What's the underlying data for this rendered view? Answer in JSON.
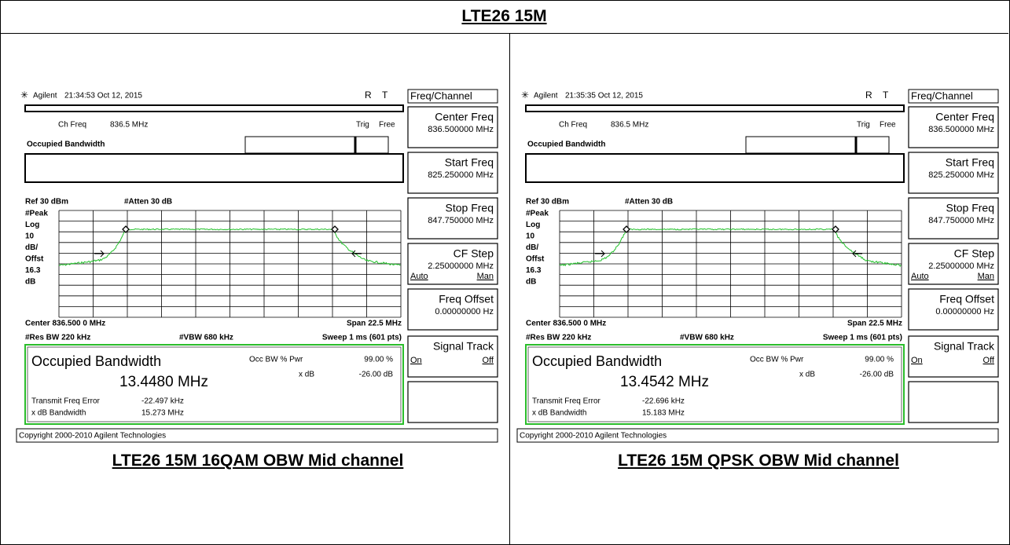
{
  "header": {
    "title": "LTE26 15M"
  },
  "panels": [
    {
      "caption": "LTE26 15M 16QAM OBW Mid channel",
      "screen": {
        "brand": "Agilent",
        "timestamp": "21:34:53  Oct 12, 2015",
        "status_r": "R",
        "status_t": "T",
        "menu_title": "Freq/Channel",
        "ch_freq_label": "Ch Freq",
        "ch_freq": "836.5 MHz",
        "trig": "Trig",
        "trig_mode": "Free",
        "mode": "Occupied Bandwidth",
        "ref": "Ref 30 dBm",
        "atten": "#Atten 30 dB",
        "scale_labels": [
          "#Peak",
          "Log",
          "10",
          "dB/",
          "Offst",
          "16.3",
          "dB"
        ],
        "center": "Center 836.500 0 MHz",
        "span": "Span 22.5 MHz",
        "res_bw": "#Res BW 220 kHz",
        "vbw": "#VBW 680 kHz",
        "sweep": "Sweep 1 ms (601 pts)",
        "result_title": "Occupied Bandwidth",
        "obw": "13.4480 MHz",
        "occ_label": "Occ BW % Pwr",
        "occ_value": "99.00 %",
        "xdb_label": "x dB",
        "xdb_value": "-26.00 dB",
        "tfe_label": "Transmit Freq Error",
        "tfe_value": "-22.497 kHz",
        "xbw_label": "x dB Bandwidth",
        "xbw_value": "15.273 MHz",
        "copyright": "Copyright 2000-2010 Agilent Technologies",
        "softkeys": [
          {
            "label": "Center Freq",
            "value": "836.500000 MHz"
          },
          {
            "label": "Start Freq",
            "value": "825.250000 MHz"
          },
          {
            "label": "Stop Freq",
            "value": "847.750000 MHz"
          },
          {
            "label": "CF Step",
            "value": "2.25000000 MHz",
            "left": "Auto",
            "right": "Man"
          },
          {
            "label": "Freq Offset",
            "value": "0.00000000  Hz"
          },
          {
            "label": "Signal Track",
            "left": "On",
            "right": "Off"
          }
        ]
      }
    },
    {
      "caption": "LTE26 15M QPSK OBW Mid channel",
      "screen": {
        "brand": "Agilent",
        "timestamp": "21:35:35  Oct 12, 2015",
        "status_r": "R",
        "status_t": "T",
        "menu_title": "Freq/Channel",
        "ch_freq_label": "Ch Freq",
        "ch_freq": "836.5 MHz",
        "trig": "Trig",
        "trig_mode": "Free",
        "mode": "Occupied Bandwidth",
        "ref": "Ref 30 dBm",
        "atten": "#Atten 30 dB",
        "scale_labels": [
          "#Peak",
          "Log",
          "10",
          "dB/",
          "Offst",
          "16.3",
          "dB"
        ],
        "center": "Center 836.500 0 MHz",
        "span": "Span 22.5 MHz",
        "res_bw": "#Res BW 220 kHz",
        "vbw": "#VBW 680 kHz",
        "sweep": "Sweep 1 ms (601 pts)",
        "result_title": "Occupied Bandwidth",
        "obw": "13.4542 MHz",
        "occ_label": "Occ BW % Pwr",
        "occ_value": "99.00 %",
        "xdb_label": "x dB",
        "xdb_value": "-26.00 dB",
        "tfe_label": "Transmit Freq Error",
        "tfe_value": "-22.696 kHz",
        "xbw_label": "x dB Bandwidth",
        "xbw_value": "15.183 MHz",
        "copyright": "Copyright 2000-2010 Agilent Technologies",
        "softkeys": [
          {
            "label": "Center Freq",
            "value": "836.500000 MHz"
          },
          {
            "label": "Start Freq",
            "value": "825.250000 MHz"
          },
          {
            "label": "Stop Freq",
            "value": "847.750000 MHz"
          },
          {
            "label": "CF Step",
            "value": "2.25000000 MHz",
            "left": "Auto",
            "right": "Man"
          },
          {
            "label": "Freq Offset",
            "value": "0.00000000  Hz"
          },
          {
            "label": "Signal Track",
            "left": "On",
            "right": "Off"
          }
        ]
      }
    }
  ]
}
